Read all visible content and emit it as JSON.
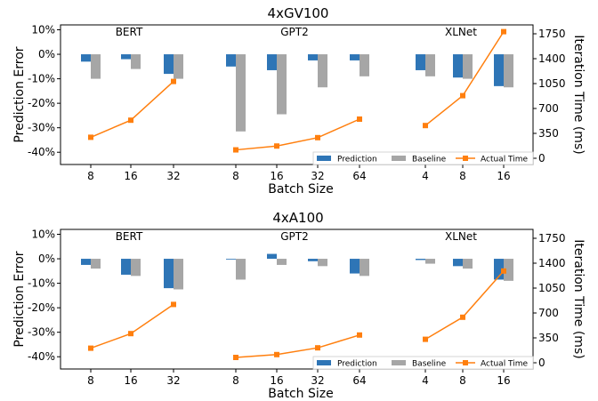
{
  "legend": {
    "prediction": "Prediction",
    "baseline": "Baseline",
    "actual": "Actual Time"
  },
  "colors": {
    "prediction": "#2e75b6",
    "baseline": "#a6a6a6",
    "actual": "#ff7f0e"
  },
  "chart_data": [
    {
      "type": "bar",
      "title": "4xGV100",
      "xlabel": "Batch Size",
      "ylabel": "Prediction Error",
      "y2label": "Iteration Time (ms)",
      "ylim": [
        -45,
        12
      ],
      "yticks": [
        "10%",
        "0%",
        "-10%",
        "-20%",
        "-30%",
        "-40%"
      ],
      "y2lim": [
        -87.5,
        1875
      ],
      "y2ticks": [
        "1750",
        "1400",
        "1050",
        "700",
        "350",
        "0"
      ],
      "legend_position": "bottom-right",
      "groups": [
        {
          "name": "BERT",
          "categories": [
            "8",
            "16",
            "32"
          ],
          "prediction": [
            -3,
            -2,
            -8
          ],
          "baseline": [
            -10,
            -6,
            -10
          ],
          "actual_ms": [
            295,
            535,
            1080
          ]
        },
        {
          "name": "GPT2",
          "categories": [
            "8",
            "16",
            "32",
            "64"
          ],
          "prediction": [
            -5,
            -6.5,
            -2.5,
            -2.5
          ],
          "baseline": [
            -31.5,
            -24.5,
            -13.5,
            -9
          ],
          "actual_ms": [
            118,
            172,
            290,
            550
          ]
        },
        {
          "name": "XLNet",
          "categories": [
            "4",
            "8",
            "16"
          ],
          "prediction": [
            -6.5,
            -9.5,
            -13
          ],
          "baseline": [
            -9,
            -10,
            -13.5
          ],
          "actual_ms": [
            460,
            880,
            1780
          ]
        }
      ]
    },
    {
      "type": "bar",
      "title": "4xA100",
      "xlabel": "Batch Size",
      "ylabel": "Prediction Error",
      "y2label": "Iteration Time (ms)",
      "ylim": [
        -45,
        12
      ],
      "yticks": [
        "10%",
        "0%",
        "-10%",
        "-20%",
        "-30%",
        "-40%"
      ],
      "y2lim": [
        -87.5,
        1875
      ],
      "y2ticks": [
        "1750",
        "1400",
        "1050",
        "700",
        "350",
        "0"
      ],
      "legend_position": "bottom-right",
      "groups": [
        {
          "name": "BERT",
          "categories": [
            "8",
            "16",
            "32"
          ],
          "prediction": [
            -2.5,
            -6.5,
            -12
          ],
          "baseline": [
            -4,
            -7,
            -12.5
          ],
          "actual_ms": [
            205,
            410,
            820
          ]
        },
        {
          "name": "GPT2",
          "categories": [
            "8",
            "16",
            "32",
            "64"
          ],
          "prediction": [
            -0.3,
            2,
            -1,
            -6
          ],
          "baseline": [
            -8.5,
            -2.5,
            -3,
            -7
          ],
          "actual_ms": [
            75,
            115,
            210,
            390
          ]
        },
        {
          "name": "XLNet",
          "categories": [
            "4",
            "8",
            "16"
          ],
          "prediction": [
            -0.5,
            -3,
            -8.5
          ],
          "baseline": [
            -2,
            -4,
            -9
          ],
          "actual_ms": [
            330,
            640,
            1290
          ]
        }
      ]
    }
  ]
}
